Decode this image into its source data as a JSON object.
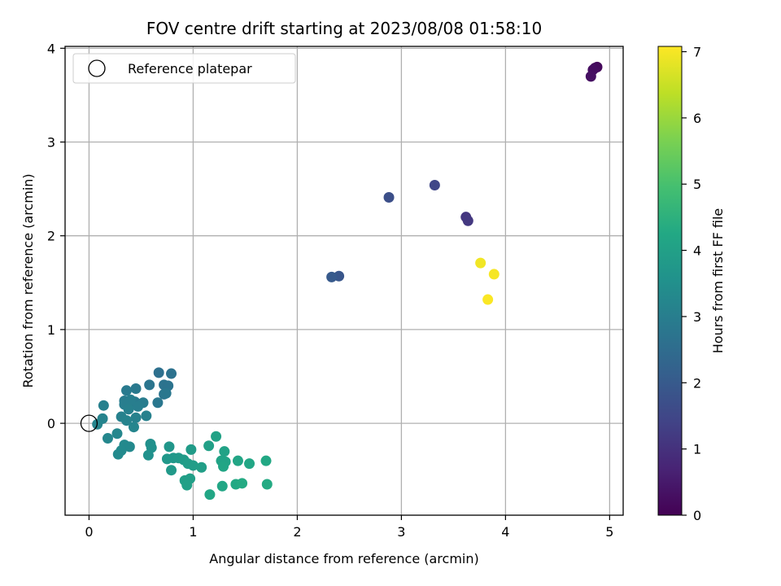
{
  "chart_data": {
    "type": "scatter",
    "title": "FOV centre drift starting at 2023/08/08 01:58:10",
    "xlabel": "Angular distance from reference (arcmin)",
    "ylabel": "Rotation from reference (arcmin)",
    "xlim": [
      -0.23,
      5.13
    ],
    "ylim": [
      -0.98,
      4.02
    ],
    "xticks": [
      0,
      1,
      2,
      3,
      4,
      5
    ],
    "yticks": [
      0,
      1,
      2,
      3,
      4
    ],
    "grid": true,
    "legend": {
      "position": "upper-left",
      "entries": [
        "Reference platepar"
      ]
    },
    "colorbar": {
      "label": "Hours from first FF file",
      "range": [
        0,
        7.08
      ],
      "ticks": [
        0,
        1,
        2,
        3,
        4,
        5,
        6,
        7
      ],
      "colormap": "viridis"
    },
    "reference_point": {
      "x": 0,
      "y": 0
    },
    "points": [
      {
        "x": 4.88,
        "y": 3.8,
        "h": 0.15
      },
      {
        "x": 4.86,
        "y": 3.79,
        "h": 0.2
      },
      {
        "x": 4.84,
        "y": 3.77,
        "h": 0.25
      },
      {
        "x": 4.82,
        "y": 3.7,
        "h": 0.3
      },
      {
        "x": 3.62,
        "y": 2.2,
        "h": 1.1
      },
      {
        "x": 3.64,
        "y": 2.16,
        "h": 1.15
      },
      {
        "x": 3.32,
        "y": 2.54,
        "h": 1.5
      },
      {
        "x": 2.88,
        "y": 2.41,
        "h": 1.7
      },
      {
        "x": 2.4,
        "y": 1.57,
        "h": 1.9
      },
      {
        "x": 2.33,
        "y": 1.56,
        "h": 2.0
      },
      {
        "x": 0.67,
        "y": 0.54,
        "h": 2.6
      },
      {
        "x": 0.79,
        "y": 0.53,
        "h": 2.65
      },
      {
        "x": 0.72,
        "y": 0.41,
        "h": 2.7
      },
      {
        "x": 0.76,
        "y": 0.4,
        "h": 2.7
      },
      {
        "x": 0.58,
        "y": 0.41,
        "h": 2.75
      },
      {
        "x": 0.72,
        "y": 0.31,
        "h": 2.75
      },
      {
        "x": 0.74,
        "y": 0.32,
        "h": 2.8
      },
      {
        "x": 0.66,
        "y": 0.22,
        "h": 2.8
      },
      {
        "x": 0.45,
        "y": 0.37,
        "h": 2.85
      },
      {
        "x": 0.36,
        "y": 0.35,
        "h": 2.9
      },
      {
        "x": 0.44,
        "y": 0.23,
        "h": 2.9
      },
      {
        "x": 0.52,
        "y": 0.22,
        "h": 2.95
      },
      {
        "x": 0.34,
        "y": 0.24,
        "h": 2.95
      },
      {
        "x": 0.4,
        "y": 0.25,
        "h": 3.0
      },
      {
        "x": 0.34,
        "y": 0.2,
        "h": 3.0
      },
      {
        "x": 0.47,
        "y": 0.18,
        "h": 3.0
      },
      {
        "x": 0.38,
        "y": 0.15,
        "h": 3.05
      },
      {
        "x": 0.14,
        "y": 0.19,
        "h": 3.05
      },
      {
        "x": 0.55,
        "y": 0.08,
        "h": 3.1
      },
      {
        "x": 0.45,
        "y": 0.06,
        "h": 3.1
      },
      {
        "x": 0.31,
        "y": 0.07,
        "h": 3.1
      },
      {
        "x": 0.13,
        "y": 0.05,
        "h": 3.15
      },
      {
        "x": 0.36,
        "y": 0.03,
        "h": 3.15
      },
      {
        "x": 0.08,
        "y": -0.01,
        "h": 3.2
      },
      {
        "x": 0.43,
        "y": -0.04,
        "h": 3.2
      },
      {
        "x": 0.27,
        "y": -0.11,
        "h": 3.25
      },
      {
        "x": 0.18,
        "y": -0.16,
        "h": 3.25
      },
      {
        "x": 0.34,
        "y": -0.23,
        "h": 3.3
      },
      {
        "x": 0.39,
        "y": -0.25,
        "h": 3.3
      },
      {
        "x": 0.31,
        "y": -0.29,
        "h": 3.35
      },
      {
        "x": 0.28,
        "y": -0.33,
        "h": 3.35
      },
      {
        "x": 0.59,
        "y": -0.22,
        "h": 3.5
      },
      {
        "x": 0.6,
        "y": -0.26,
        "h": 3.55
      },
      {
        "x": 0.57,
        "y": -0.34,
        "h": 3.55
      },
      {
        "x": 0.77,
        "y": -0.25,
        "h": 3.7
      },
      {
        "x": 0.81,
        "y": -0.37,
        "h": 3.75
      },
      {
        "x": 0.75,
        "y": -0.38,
        "h": 3.75
      },
      {
        "x": 0.86,
        "y": -0.37,
        "h": 3.8
      },
      {
        "x": 0.79,
        "y": -0.5,
        "h": 3.8
      },
      {
        "x": 0.91,
        "y": -0.39,
        "h": 3.85
      },
      {
        "x": 0.98,
        "y": -0.28,
        "h": 3.85
      },
      {
        "x": 0.95,
        "y": -0.43,
        "h": 3.9
      },
      {
        "x": 1.0,
        "y": -0.45,
        "h": 3.9
      },
      {
        "x": 1.08,
        "y": -0.47,
        "h": 3.95
      },
      {
        "x": 0.92,
        "y": -0.61,
        "h": 3.95
      },
      {
        "x": 0.97,
        "y": -0.59,
        "h": 3.95
      },
      {
        "x": 0.94,
        "y": -0.66,
        "h": 4.0
      },
      {
        "x": 1.15,
        "y": -0.24,
        "h": 4.0
      },
      {
        "x": 1.22,
        "y": -0.14,
        "h": 4.05
      },
      {
        "x": 1.3,
        "y": -0.3,
        "h": 4.05
      },
      {
        "x": 1.27,
        "y": -0.4,
        "h": 4.1
      },
      {
        "x": 1.31,
        "y": -0.41,
        "h": 4.1
      },
      {
        "x": 1.29,
        "y": -0.46,
        "h": 4.15
      },
      {
        "x": 1.43,
        "y": -0.4,
        "h": 4.15
      },
      {
        "x": 1.54,
        "y": -0.43,
        "h": 4.2
      },
      {
        "x": 1.7,
        "y": -0.4,
        "h": 4.25
      },
      {
        "x": 1.16,
        "y": -0.76,
        "h": 4.2
      },
      {
        "x": 1.28,
        "y": -0.67,
        "h": 4.2
      },
      {
        "x": 1.41,
        "y": -0.65,
        "h": 4.25
      },
      {
        "x": 1.47,
        "y": -0.64,
        "h": 4.3
      },
      {
        "x": 1.71,
        "y": -0.65,
        "h": 4.3
      },
      {
        "x": 3.76,
        "y": 1.71,
        "h": 6.95
      },
      {
        "x": 3.89,
        "y": 1.59,
        "h": 7.0
      },
      {
        "x": 3.83,
        "y": 1.32,
        "h": 7.05
      }
    ]
  }
}
